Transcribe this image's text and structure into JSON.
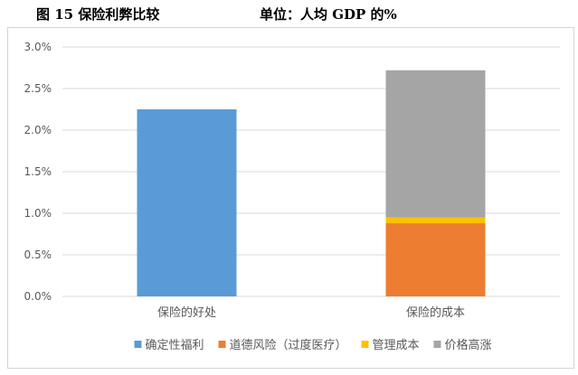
{
  "caption": {
    "figure_label": "图 15  保险利弊比较",
    "unit_label": "单位：人均 GDP 的%"
  },
  "colors": {
    "blue": "#5B9BD5",
    "orange": "#ED7D31",
    "yellow": "#FFC000",
    "gray": "#A5A5A5",
    "grid": "#D9D9D9",
    "axis_text": "#595959"
  },
  "chart_data": {
    "type": "bar",
    "stacked": true,
    "categories": [
      "保险的好处",
      "保险的成本"
    ],
    "ylim": [
      0,
      3.0
    ],
    "yticks": [
      "0.0%",
      "0.5%",
      "1.0%",
      "1.5%",
      "2.0%",
      "2.5%",
      "3.0%"
    ],
    "ytick_values": [
      0,
      0.5,
      1.0,
      1.5,
      2.0,
      2.5,
      3.0
    ],
    "grid": true,
    "legend_position": "bottom",
    "series": [
      {
        "name": "确定性福利",
        "color": "#5B9BD5",
        "values": [
          2.25,
          0
        ]
      },
      {
        "name": "道德风险（过度医疗）",
        "color": "#ED7D31",
        "values": [
          0,
          0.88
        ]
      },
      {
        "name": "管理成本",
        "color": "#FFC000",
        "values": [
          0,
          0.07
        ]
      },
      {
        "name": "价格高涨",
        "color": "#A5A5A5",
        "values": [
          0,
          1.77
        ]
      }
    ]
  }
}
